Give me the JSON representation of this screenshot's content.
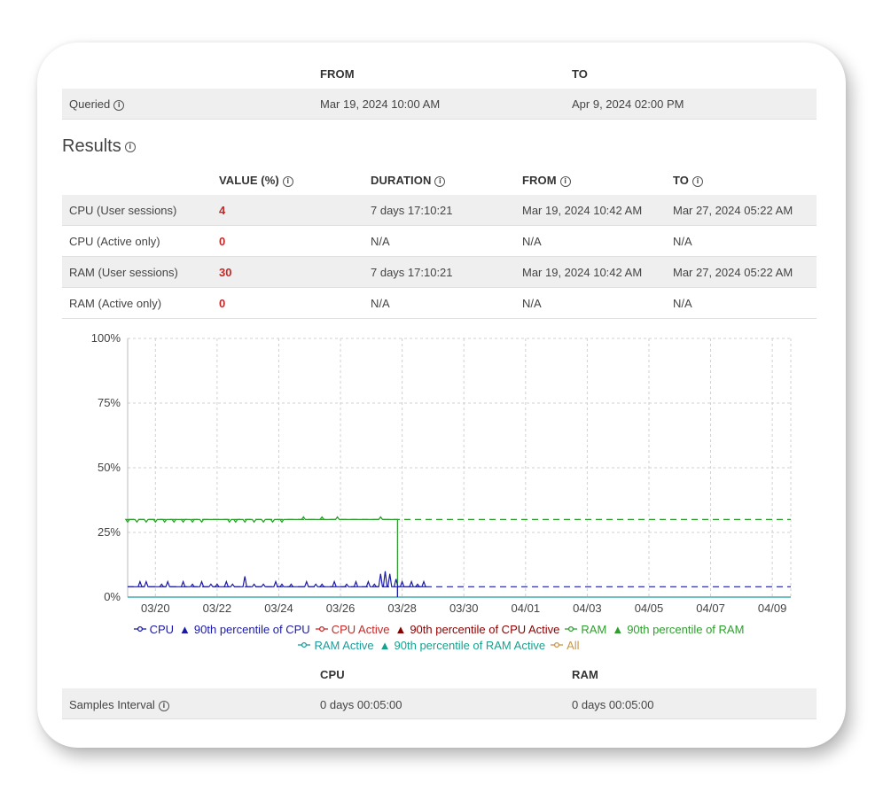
{
  "query": {
    "header_from": "FROM",
    "header_to": "TO",
    "label": "Queried",
    "from": "Mar 19, 2024 10:00 AM",
    "to": "Apr 9, 2024 02:00 PM"
  },
  "results": {
    "title": "Results",
    "headers": {
      "value": "VALUE (%)",
      "duration": "DURATION",
      "from": "FROM",
      "to": "TO"
    },
    "rows": [
      {
        "label": "CPU (User sessions)",
        "value": "4",
        "duration": "7 days 17:10:21",
        "from": "Mar 19, 2024 10:42 AM",
        "to": "Mar 27, 2024 05:22 AM"
      },
      {
        "label": "CPU (Active only)",
        "value": "0",
        "duration": "N/A",
        "from": "N/A",
        "to": "N/A"
      },
      {
        "label": "RAM (User sessions)",
        "value": "30",
        "duration": "7 days 17:10:21",
        "from": "Mar 19, 2024 10:42 AM",
        "to": "Mar 27, 2024 05:22 AM"
      },
      {
        "label": "RAM (Active only)",
        "value": "0",
        "duration": "N/A",
        "from": "N/A",
        "to": "N/A"
      }
    ]
  },
  "chart_data": {
    "type": "line",
    "title": "",
    "xlabel": "",
    "ylabel": "",
    "y_ticks": [
      "100%",
      "75%",
      "50%",
      "25%",
      "0%"
    ],
    "ylim": [
      0,
      100
    ],
    "x_ticks": [
      "03/20",
      "03/22",
      "03/24",
      "03/26",
      "03/28",
      "03/30",
      "04/01",
      "04/03",
      "04/05",
      "04/07",
      "04/09"
    ],
    "grid": true,
    "series": [
      {
        "name": "CPU",
        "color": "#1a1aa6",
        "end_date": "03/27",
        "baseline": 4,
        "spikes": [
          [
            19.5,
            6
          ],
          [
            19.7,
            6
          ],
          [
            20.2,
            5
          ],
          [
            20.4,
            6
          ],
          [
            20.9,
            6
          ],
          [
            21.2,
            5
          ],
          [
            21.5,
            6
          ],
          [
            21.8,
            5
          ],
          [
            22.0,
            5
          ],
          [
            22.3,
            6
          ],
          [
            22.5,
            5
          ],
          [
            22.9,
            8
          ],
          [
            23.2,
            5
          ],
          [
            23.5,
            5
          ],
          [
            23.9,
            6
          ],
          [
            24.1,
            5
          ],
          [
            24.4,
            5
          ],
          [
            24.9,
            6
          ],
          [
            25.2,
            5
          ],
          [
            25.4,
            5
          ],
          [
            25.8,
            6
          ],
          [
            26.2,
            5
          ],
          [
            26.5,
            6
          ],
          [
            26.9,
            6
          ],
          [
            27.1,
            5
          ],
          [
            27.3,
            9
          ],
          [
            27.45,
            10
          ],
          [
            27.6,
            9
          ],
          [
            27.8,
            7
          ],
          [
            28.0,
            6
          ],
          [
            28.3,
            6
          ],
          [
            28.5,
            5
          ],
          [
            28.7,
            6
          ]
        ]
      },
      {
        "name": "90th percentile of CPU",
        "color": "#1a1aa6",
        "value": 4,
        "dashed": true
      },
      {
        "name": "CPU Active",
        "color": "#c62828",
        "value": 0
      },
      {
        "name": "90th percentile of CPU Active",
        "color": "#8b0000",
        "value": 0,
        "dashed": true
      },
      {
        "name": "RAM",
        "color": "#2e9e2e",
        "end_date": "03/27",
        "baseline": 30,
        "dips": [
          [
            19.1,
            29
          ],
          [
            19.4,
            29
          ],
          [
            19.7,
            29
          ],
          [
            20.0,
            29
          ],
          [
            20.3,
            29
          ],
          [
            20.6,
            29
          ],
          [
            20.9,
            29
          ],
          [
            21.2,
            29
          ],
          [
            21.5,
            29
          ],
          [
            22.4,
            29
          ],
          [
            22.6,
            29
          ],
          [
            22.9,
            29
          ],
          [
            23.2,
            29
          ],
          [
            23.5,
            29
          ],
          [
            23.8,
            29
          ],
          [
            24.1,
            29
          ]
        ],
        "spikes": [
          [
            24.8,
            31
          ],
          [
            25.4,
            31
          ],
          [
            25.9,
            31
          ],
          [
            27.3,
            31
          ]
        ]
      },
      {
        "name": "90th percentile of RAM",
        "color": "#2e9e2e",
        "value": 30,
        "dashed": true
      },
      {
        "name": "RAM Active",
        "color": "#1a9c9c",
        "value": 0
      },
      {
        "name": "90th percentile of RAM Active",
        "color": "#13a38f",
        "value": 0,
        "dashed": true
      },
      {
        "name": "All",
        "color": "#c8964a"
      }
    ]
  },
  "legend": {
    "items_row1": [
      {
        "label": "CPU",
        "color": "#1a1aa6",
        "marker": "circle-line"
      },
      {
        "label": "90th percentile of CPU",
        "color": "#1a1aa6",
        "marker": "triangle"
      },
      {
        "label": "CPU Active",
        "color": "#c62828",
        "marker": "circle-line"
      },
      {
        "label": "90th percentile of CPU Active",
        "color": "#8b0000",
        "marker": "triangle"
      },
      {
        "label": "RAM",
        "color": "#2e9e2e",
        "marker": "circle-line"
      },
      {
        "label": "90th percentile of RAM",
        "color": "#2e9e2e",
        "marker": "triangle"
      }
    ],
    "items_row2": [
      {
        "label": "RAM Active",
        "color": "#1a9c9c",
        "marker": "circle-line"
      },
      {
        "label": "90th percentile of RAM Active",
        "color": "#13a38f",
        "marker": "triangle"
      },
      {
        "label": "All",
        "color": "#c8964a",
        "marker": "circle-line"
      }
    ]
  },
  "samples": {
    "header_cpu": "CPU",
    "header_ram": "RAM",
    "label": "Samples Interval",
    "cpu": "0 days 00:05:00",
    "ram": "0 days 00:05:00"
  }
}
